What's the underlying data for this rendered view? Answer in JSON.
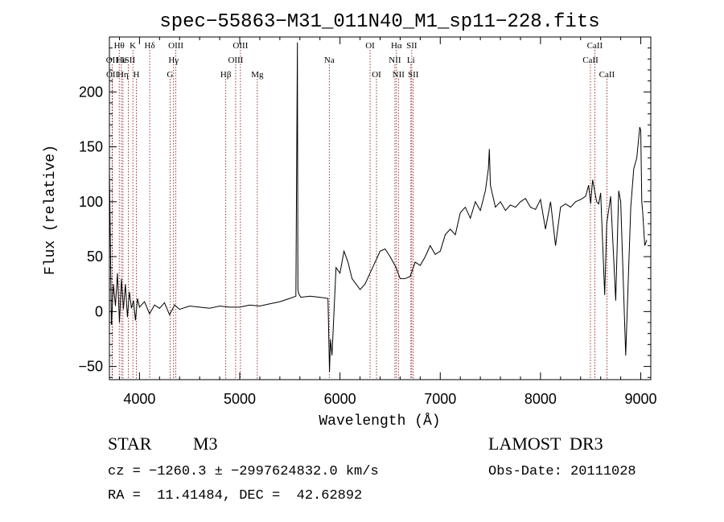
{
  "chart_data": {
    "type": "line",
    "title": "spec−55863−M31_011N40_M1_sp11−228.fits",
    "xlabel": "Wavelength (Å)",
    "ylabel": "Flux (relative)",
    "xlim": [
      3700,
      9100
    ],
    "ylim": [
      -62,
      250
    ],
    "xticks": [
      4000,
      5000,
      6000,
      7000,
      8000,
      9000
    ],
    "yticks": [
      -50,
      0,
      50,
      100,
      150,
      200
    ],
    "grid": false,
    "series": [
      {
        "line_color": "#000000",
        "x": [
          3700,
          3720,
          3740,
          3760,
          3780,
          3800,
          3820,
          3840,
          3860,
          3880,
          3900,
          3920,
          3940,
          3960,
          3980,
          4000,
          4050,
          4100,
          4150,
          4200,
          4250,
          4300,
          4350,
          4400,
          4500,
          4600,
          4700,
          4800,
          4900,
          5000,
          5100,
          5200,
          5300,
          5400,
          5500,
          5560,
          5575,
          5580,
          5590,
          5610,
          5700,
          5800,
          5880,
          5895,
          5905,
          5920,
          5960,
          6000,
          6040,
          6080,
          6120,
          6160,
          6200,
          6250,
          6300,
          6350,
          6400,
          6450,
          6500,
          6560,
          6600,
          6650,
          6700,
          6750,
          6800,
          6850,
          6900,
          6950,
          7000,
          7050,
          7100,
          7150,
          7200,
          7250,
          7300,
          7350,
          7400,
          7450,
          7480,
          7490,
          7500,
          7550,
          7600,
          7650,
          7700,
          7750,
          7800,
          7850,
          7900,
          7950,
          8000,
          8050,
          8100,
          8150,
          8200,
          8250,
          8300,
          8350,
          8400,
          8450,
          8480,
          8500,
          8520,
          8540,
          8560,
          8580,
          8600,
          8640,
          8660,
          8700,
          8750,
          8780,
          8800,
          8850,
          8900,
          8930,
          8960,
          8990,
          9000,
          9010,
          9020,
          9040,
          9060
        ],
        "y": [
          130,
          -12,
          25,
          5,
          35,
          -10,
          30,
          2,
          25,
          -5,
          18,
          3,
          10,
          -8,
          12,
          4,
          9,
          -2,
          6,
          3,
          8,
          -3,
          6,
          2,
          5,
          4,
          3,
          5,
          4,
          4,
          6,
          5,
          7,
          9,
          12,
          14,
          245,
          20,
          16,
          13,
          14,
          13,
          12,
          -55,
          -25,
          -40,
          40,
          35,
          55,
          45,
          30,
          25,
          20,
          25,
          35,
          45,
          55,
          57,
          50,
          40,
          30,
          30,
          32,
          45,
          42,
          50,
          60,
          52,
          55,
          70,
          75,
          70,
          90,
          95,
          85,
          100,
          92,
          110,
          130,
          148,
          115,
          95,
          100,
          92,
          97,
          95,
          100,
          103,
          95,
          93,
          102,
          75,
          100,
          60,
          95,
          98,
          95,
          100,
          102,
          105,
          115,
          98,
          120,
          110,
          100,
          98,
          108,
          15,
          80,
          105,
          10,
          110,
          100,
          -40,
          95,
          130,
          140,
          168,
          165,
          100,
          90,
          60,
          65
        ]
      }
    ],
    "line_markers": [
      {
        "label": "Hθ",
        "row": 1,
        "x": 3798
      },
      {
        "label": "OII",
        "row": 2,
        "x": 3727
      },
      {
        "label": "OII",
        "row": 3,
        "x": 3729
      },
      {
        "label": "He",
        "row": 2,
        "x": 3820
      },
      {
        "label": "Hη",
        "row": 3,
        "x": 3835
      },
      {
        "label": "K",
        "row": 1,
        "x": 3934
      },
      {
        "label": "ISII",
        "row": 2,
        "x": 3889
      },
      {
        "label": "H",
        "row": 3,
        "x": 3969
      },
      {
        "label": "Hδ",
        "row": 1,
        "x": 4102
      },
      {
        "label": "OIII",
        "row": 1,
        "x": 4363
      },
      {
        "label": "Hγ",
        "row": 2,
        "x": 4340
      },
      {
        "label": "G",
        "row": 3,
        "x": 4305
      },
      {
        "label": "Hβ",
        "row": 3,
        "x": 4861
      },
      {
        "label": "OIII",
        "row": 1,
        "x": 5007
      },
      {
        "label": "OIII",
        "row": 2,
        "x": 4959
      },
      {
        "label": "Mg",
        "row": 3,
        "x": 5175
      },
      {
        "label": "Na",
        "row": 2,
        "x": 5893
      },
      {
        "label": "OI",
        "row": 1,
        "x": 6300
      },
      {
        "label": "OI",
        "row": 3,
        "x": 6364
      },
      {
        "label": "Hα",
        "row": 1,
        "x": 6563
      },
      {
        "label": "SII",
        "row": 1,
        "x": 6716
      },
      {
        "label": "NII",
        "row": 2,
        "x": 6548
      },
      {
        "label": "Li",
        "row": 2,
        "x": 6707
      },
      {
        "label": "NII",
        "row": 3,
        "x": 6583
      },
      {
        "label": "SII",
        "row": 3,
        "x": 6731
      },
      {
        "label": "CaII",
        "row": 1,
        "x": 8542
      },
      {
        "label": "CaII",
        "row": 2,
        "x": 8498
      },
      {
        "label": "CaII",
        "row": 3,
        "x": 8662
      }
    ],
    "marker_line_color": "#8b0000"
  },
  "info": {
    "object_type": "STAR",
    "subclass": "M3",
    "survey": "LAMOST  DR3",
    "velocity": "cz = −1260.3 ± −2997624832.0 km/s",
    "obs_date": "Obs-Date: 20111028",
    "coords": "RA =  11.41484, DEC =  42.62892"
  }
}
